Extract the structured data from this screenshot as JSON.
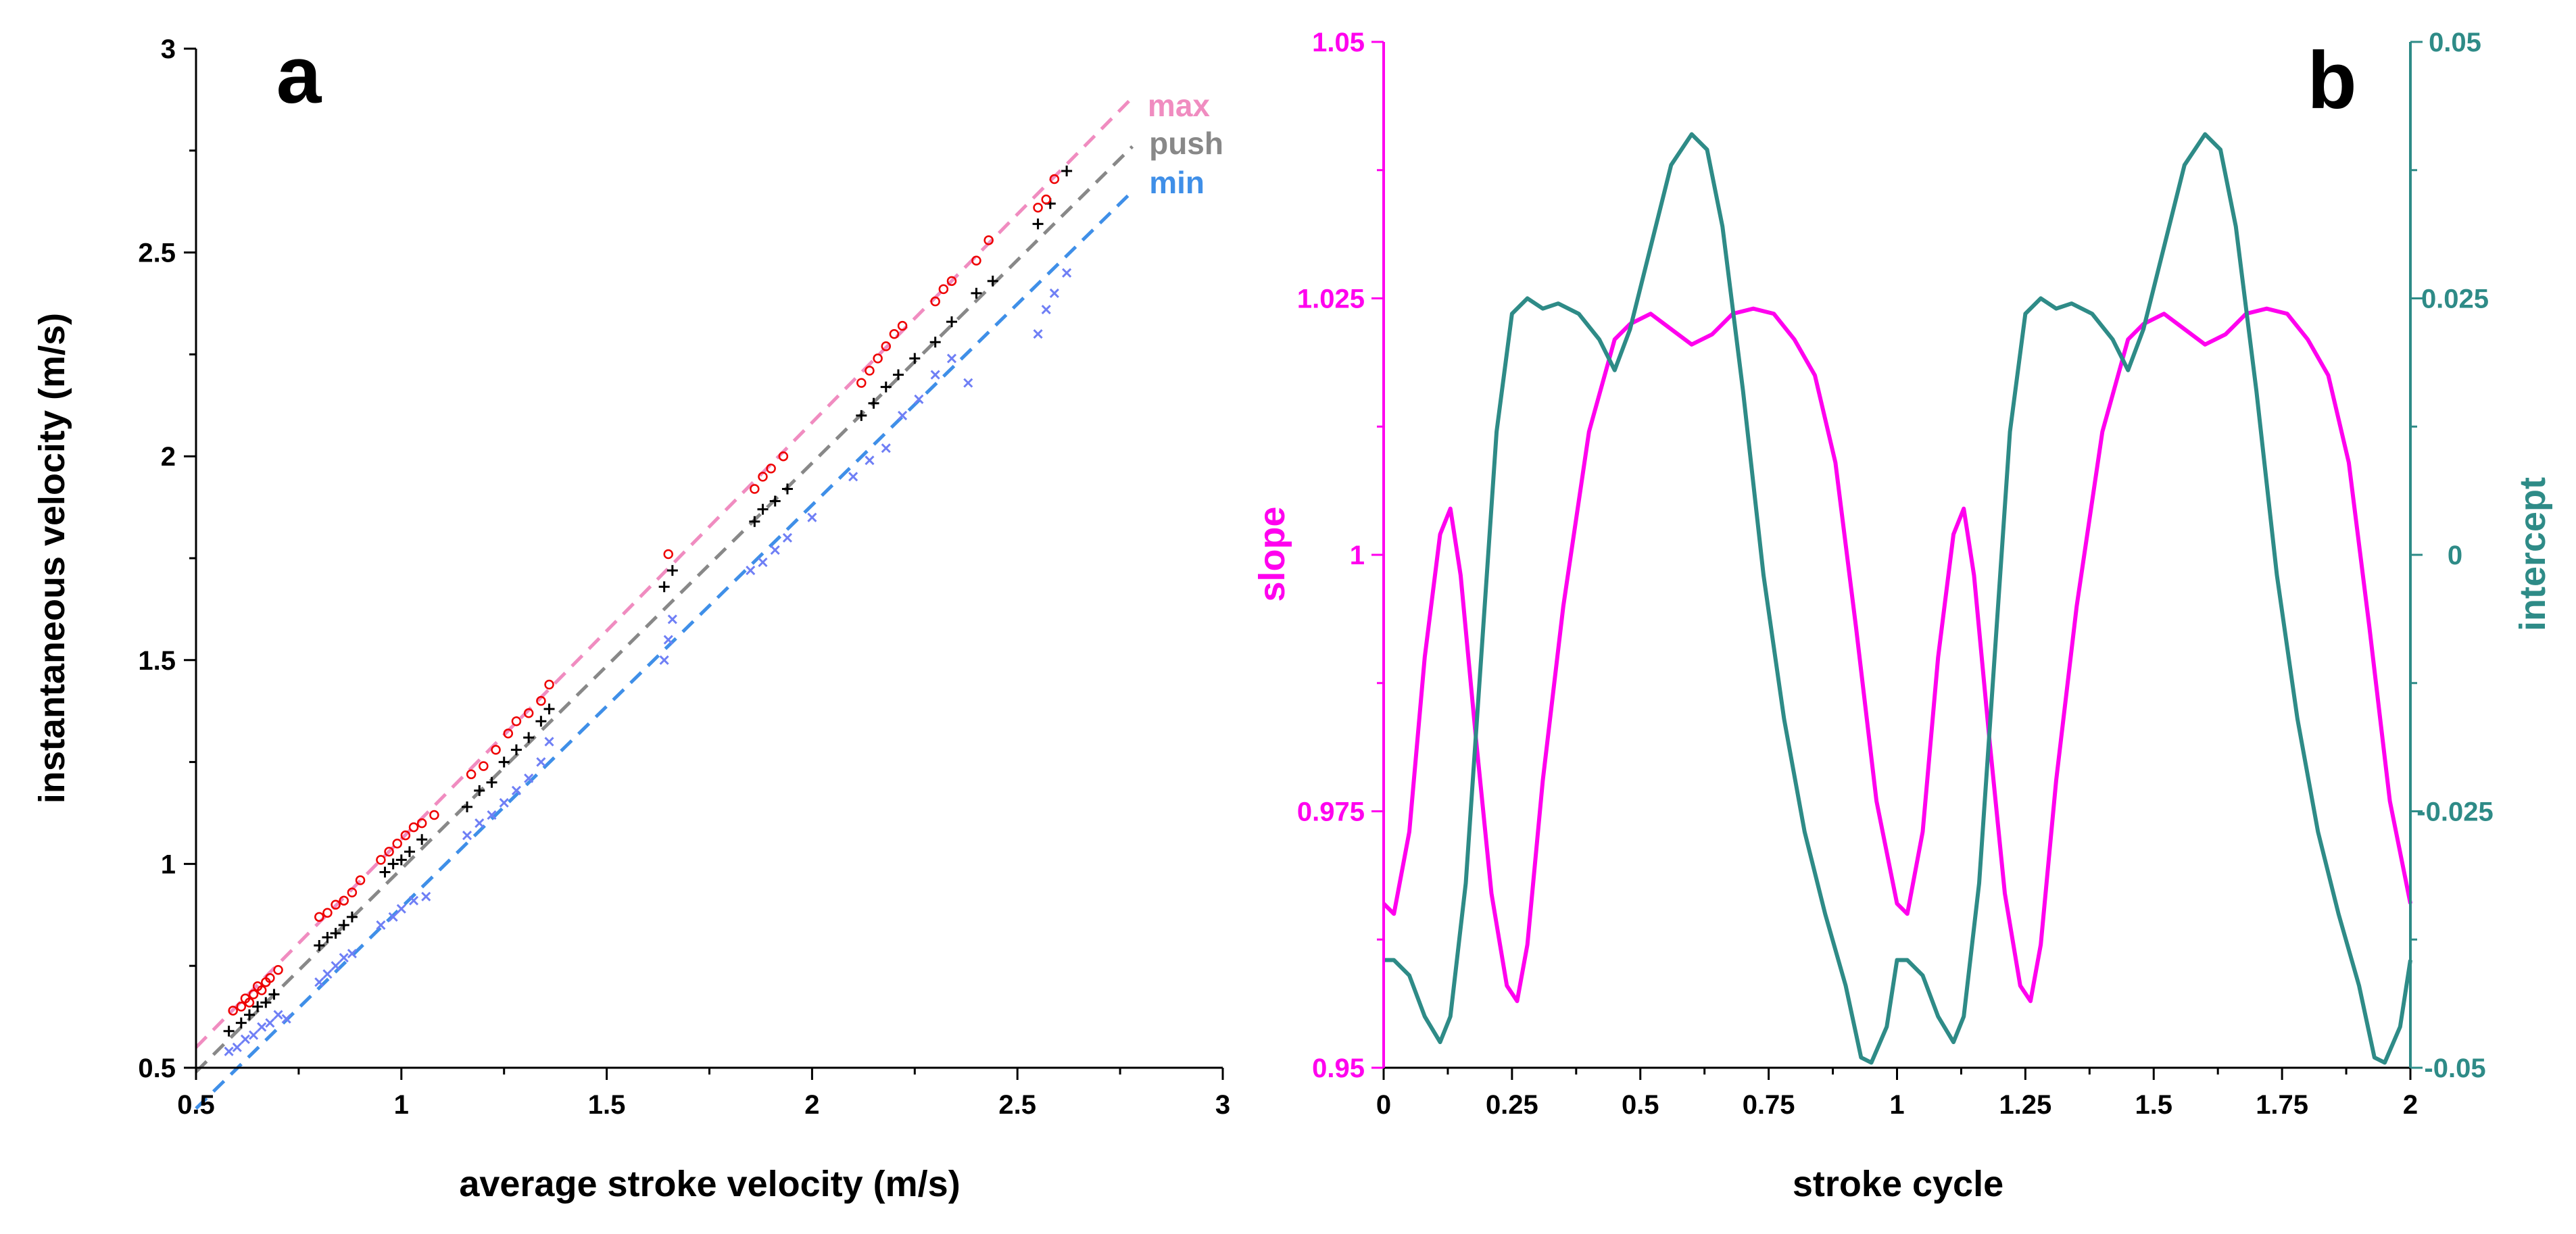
{
  "chart_data": [
    {
      "type": "scatter",
      "panel_label": "a",
      "title": "",
      "xlabel": "average stroke velocity (m/s)",
      "ylabel": "instantaneous velocity (m/s)",
      "xlim": [
        0.5,
        3
      ],
      "ylim": [
        0.5,
        3
      ],
      "x_ticks": [
        0.5,
        1,
        1.5,
        2,
        2.5,
        3
      ],
      "x_tick_labels": [
        "0.5",
        "1",
        "1.5",
        "2",
        "2.5",
        "3"
      ],
      "y_ticks": [
        0.5,
        1,
        1.5,
        2,
        2.5,
        3
      ],
      "y_tick_labels": [
        "0.5",
        "1",
        "1.5",
        "2",
        "2.5",
        "3"
      ],
      "grid": false,
      "legend_position": "top-right",
      "series": [
        {
          "name": "max",
          "color": "#ee0000",
          "marker": "circle",
          "fit_color": "#f08cc0",
          "fit": {
            "x": [
              0.5,
              2.78
            ],
            "y": [
              0.55,
              2.88
            ]
          },
          "points": [
            [
              0.59,
              0.64
            ],
            [
              0.61,
              0.65
            ],
            [
              0.62,
              0.67
            ],
            [
              0.63,
              0.66
            ],
            [
              0.64,
              0.68
            ],
            [
              0.65,
              0.7
            ],
            [
              0.66,
              0.69
            ],
            [
              0.67,
              0.71
            ],
            [
              0.68,
              0.72
            ],
            [
              0.7,
              0.74
            ],
            [
              0.8,
              0.87
            ],
            [
              0.82,
              0.88
            ],
            [
              0.84,
              0.9
            ],
            [
              0.86,
              0.91
            ],
            [
              0.88,
              0.93
            ],
            [
              0.9,
              0.96
            ],
            [
              0.95,
              1.01
            ],
            [
              0.97,
              1.03
            ],
            [
              0.99,
              1.05
            ],
            [
              1.01,
              1.07
            ],
            [
              1.03,
              1.09
            ],
            [
              1.05,
              1.1
            ],
            [
              1.08,
              1.12
            ],
            [
              1.17,
              1.22
            ],
            [
              1.2,
              1.24
            ],
            [
              1.23,
              1.28
            ],
            [
              1.26,
              1.32
            ],
            [
              1.28,
              1.35
            ],
            [
              1.31,
              1.37
            ],
            [
              1.34,
              1.4
            ],
            [
              1.36,
              1.44
            ],
            [
              1.65,
              1.76
            ],
            [
              1.86,
              1.92
            ],
            [
              1.88,
              1.95
            ],
            [
              1.9,
              1.97
            ],
            [
              1.93,
              2.0
            ],
            [
              2.12,
              2.18
            ],
            [
              2.14,
              2.21
            ],
            [
              2.16,
              2.24
            ],
            [
              2.18,
              2.27
            ],
            [
              2.2,
              2.3
            ],
            [
              2.22,
              2.32
            ],
            [
              2.3,
              2.38
            ],
            [
              2.32,
              2.41
            ],
            [
              2.34,
              2.43
            ],
            [
              2.4,
              2.48
            ],
            [
              2.43,
              2.53
            ],
            [
              2.55,
              2.61
            ],
            [
              2.57,
              2.63
            ],
            [
              2.59,
              2.68
            ]
          ]
        },
        {
          "name": "push",
          "color": "#000000",
          "marker": "plus",
          "fit_color": "#888888",
          "fit": {
            "x": [
              0.5,
              2.78
            ],
            "y": [
              0.49,
              2.76
            ]
          },
          "points": [
            [
              0.58,
              0.59
            ],
            [
              0.61,
              0.61
            ],
            [
              0.63,
              0.63
            ],
            [
              0.65,
              0.65
            ],
            [
              0.67,
              0.66
            ],
            [
              0.69,
              0.68
            ],
            [
              0.8,
              0.8
            ],
            [
              0.82,
              0.82
            ],
            [
              0.84,
              0.83
            ],
            [
              0.86,
              0.85
            ],
            [
              0.88,
              0.87
            ],
            [
              0.96,
              0.98
            ],
            [
              0.98,
              1.0
            ],
            [
              1.0,
              1.01
            ],
            [
              1.02,
              1.03
            ],
            [
              1.05,
              1.06
            ],
            [
              1.16,
              1.14
            ],
            [
              1.19,
              1.18
            ],
            [
              1.22,
              1.2
            ],
            [
              1.25,
              1.25
            ],
            [
              1.28,
              1.28
            ],
            [
              1.31,
              1.31
            ],
            [
              1.34,
              1.35
            ],
            [
              1.36,
              1.38
            ],
            [
              1.64,
              1.68
            ],
            [
              1.66,
              1.72
            ],
            [
              1.86,
              1.84
            ],
            [
              1.88,
              1.87
            ],
            [
              1.91,
              1.89
            ],
            [
              1.94,
              1.92
            ],
            [
              2.12,
              2.1
            ],
            [
              2.15,
              2.13
            ],
            [
              2.18,
              2.17
            ],
            [
              2.21,
              2.2
            ],
            [
              2.25,
              2.24
            ],
            [
              2.3,
              2.28
            ],
            [
              2.34,
              2.33
            ],
            [
              2.4,
              2.4
            ],
            [
              2.44,
              2.43
            ],
            [
              2.55,
              2.57
            ],
            [
              2.58,
              2.62
            ],
            [
              2.62,
              2.7
            ]
          ]
        },
        {
          "name": "min",
          "color": "#6f7ff5",
          "marker": "cross",
          "fit_color": "#3f8fe8",
          "fit": {
            "x": [
              0.5,
              2.78
            ],
            "y": [
              0.4,
              2.65
            ]
          },
          "points": [
            [
              0.58,
              0.54
            ],
            [
              0.6,
              0.55
            ],
            [
              0.62,
              0.57
            ],
            [
              0.64,
              0.58
            ],
            [
              0.66,
              0.6
            ],
            [
              0.68,
              0.61
            ],
            [
              0.7,
              0.63
            ],
            [
              0.72,
              0.62
            ],
            [
              0.8,
              0.71
            ],
            [
              0.82,
              0.73
            ],
            [
              0.84,
              0.75
            ],
            [
              0.86,
              0.77
            ],
            [
              0.88,
              0.78
            ],
            [
              0.95,
              0.85
            ],
            [
              0.98,
              0.87
            ],
            [
              1.0,
              0.89
            ],
            [
              1.03,
              0.91
            ],
            [
              1.06,
              0.92
            ],
            [
              1.16,
              1.07
            ],
            [
              1.19,
              1.1
            ],
            [
              1.22,
              1.12
            ],
            [
              1.25,
              1.15
            ],
            [
              1.28,
              1.18
            ],
            [
              1.31,
              1.21
            ],
            [
              1.34,
              1.25
            ],
            [
              1.36,
              1.3
            ],
            [
              1.64,
              1.5
            ],
            [
              1.65,
              1.55
            ],
            [
              1.66,
              1.6
            ],
            [
              1.85,
              1.72
            ],
            [
              1.88,
              1.74
            ],
            [
              1.91,
              1.77
            ],
            [
              1.94,
              1.8
            ],
            [
              2.0,
              1.85
            ],
            [
              2.1,
              1.95
            ],
            [
              2.14,
              1.99
            ],
            [
              2.18,
              2.02
            ],
            [
              2.22,
              2.1
            ],
            [
              2.26,
              2.14
            ],
            [
              2.3,
              2.2
            ],
            [
              2.34,
              2.24
            ],
            [
              2.38,
              2.18
            ],
            [
              2.55,
              2.3
            ],
            [
              2.57,
              2.36
            ],
            [
              2.59,
              2.4
            ],
            [
              2.62,
              2.45
            ]
          ]
        }
      ]
    },
    {
      "type": "line",
      "panel_label": "b",
      "title": "",
      "xlabel": "stroke cycle",
      "ylabel": "slope",
      "y2label": "intercept",
      "xlim": [
        0,
        2
      ],
      "ylim": [
        0.95,
        1.05
      ],
      "y2lim": [
        -0.05,
        0.05
      ],
      "x_ticks": [
        0,
        0.25,
        0.5,
        0.75,
        1,
        1.25,
        1.5,
        1.75,
        2
      ],
      "x_tick_labels": [
        "0",
        "0.25",
        "0.5",
        "0.75",
        "1",
        "1.25",
        "1.5",
        "1.75",
        "2"
      ],
      "y_ticks": [
        0.95,
        0.975,
        1,
        1.025,
        1.05
      ],
      "y_tick_labels": [
        "0.95",
        "0.975",
        "1",
        "1.025",
        "1.05"
      ],
      "y2_ticks": [
        -0.05,
        -0.025,
        0,
        0.025,
        0.05
      ],
      "y2_tick_labels": [
        "-0.05",
        "-0.025",
        "0",
        "0.025",
        "0.05"
      ],
      "grid": false,
      "series": [
        {
          "name": "slope",
          "axis": "left",
          "color": "#ff00ee",
          "x": [
            0,
            0.02,
            0.05,
            0.08,
            0.11,
            0.13,
            0.15,
            0.18,
            0.21,
            0.24,
            0.26,
            0.28,
            0.31,
            0.35,
            0.4,
            0.45,
            0.48,
            0.52,
            0.56,
            0.6,
            0.64,
            0.68,
            0.72,
            0.76,
            0.8,
            0.84,
            0.88,
            0.92,
            0.96,
            1.0,
            1.02,
            1.05,
            1.08,
            1.11,
            1.13,
            1.15,
            1.18,
            1.21,
            1.24,
            1.26,
            1.28,
            1.31,
            1.35,
            1.4,
            1.45,
            1.48,
            1.52,
            1.56,
            1.6,
            1.64,
            1.68,
            1.72,
            1.76,
            1.8,
            1.84,
            1.88,
            1.92,
            1.96,
            2.0
          ],
          "values": [
            0.966,
            0.965,
            0.973,
            0.99,
            1.002,
            1.0045,
            0.998,
            0.982,
            0.967,
            0.958,
            0.9565,
            0.962,
            0.978,
            0.995,
            1.012,
            1.021,
            1.0225,
            1.0235,
            1.022,
            1.0205,
            1.0215,
            1.0235,
            1.024,
            1.0235,
            1.021,
            1.0175,
            1.009,
            0.993,
            0.976,
            0.966,
            0.965,
            0.973,
            0.99,
            1.002,
            1.0045,
            0.998,
            0.982,
            0.967,
            0.958,
            0.9565,
            0.962,
            0.978,
            0.995,
            1.012,
            1.021,
            1.0225,
            1.0235,
            1.022,
            1.0205,
            1.0215,
            1.0235,
            1.024,
            1.0235,
            1.021,
            1.0175,
            1.009,
            0.993,
            0.976,
            0.966
          ]
        },
        {
          "name": "intercept",
          "axis": "right",
          "color": "#2e8b87",
          "x": [
            0,
            0.02,
            0.05,
            0.08,
            0.11,
            0.13,
            0.16,
            0.19,
            0.22,
            0.25,
            0.28,
            0.31,
            0.34,
            0.38,
            0.42,
            0.45,
            0.48,
            0.52,
            0.56,
            0.6,
            0.63,
            0.66,
            0.7,
            0.74,
            0.78,
            0.82,
            0.86,
            0.9,
            0.93,
            0.95,
            0.98,
            1.0,
            1.02,
            1.05,
            1.08,
            1.11,
            1.13,
            1.16,
            1.19,
            1.22,
            1.25,
            1.28,
            1.31,
            1.34,
            1.38,
            1.42,
            1.45,
            1.48,
            1.52,
            1.56,
            1.6,
            1.63,
            1.66,
            1.7,
            1.74,
            1.78,
            1.82,
            1.86,
            1.9,
            1.93,
            1.95,
            1.98,
            2.0
          ],
          "values": [
            -0.0395,
            -0.0395,
            -0.041,
            -0.045,
            -0.0475,
            -0.045,
            -0.032,
            -0.01,
            0.012,
            0.0235,
            0.025,
            0.024,
            0.0245,
            0.0235,
            0.021,
            0.018,
            0.022,
            0.03,
            0.038,
            0.041,
            0.0395,
            0.032,
            0.016,
            -0.002,
            -0.016,
            -0.027,
            -0.035,
            -0.042,
            -0.049,
            -0.0495,
            -0.046,
            -0.0395,
            -0.0395,
            -0.041,
            -0.045,
            -0.0475,
            -0.045,
            -0.032,
            -0.01,
            0.012,
            0.0235,
            0.025,
            0.024,
            0.0245,
            0.0235,
            0.021,
            0.018,
            0.022,
            0.03,
            0.038,
            0.041,
            0.0395,
            0.032,
            0.016,
            -0.002,
            -0.016,
            -0.027,
            -0.035,
            -0.042,
            -0.049,
            -0.0495,
            -0.046,
            -0.0395
          ]
        }
      ]
    }
  ]
}
